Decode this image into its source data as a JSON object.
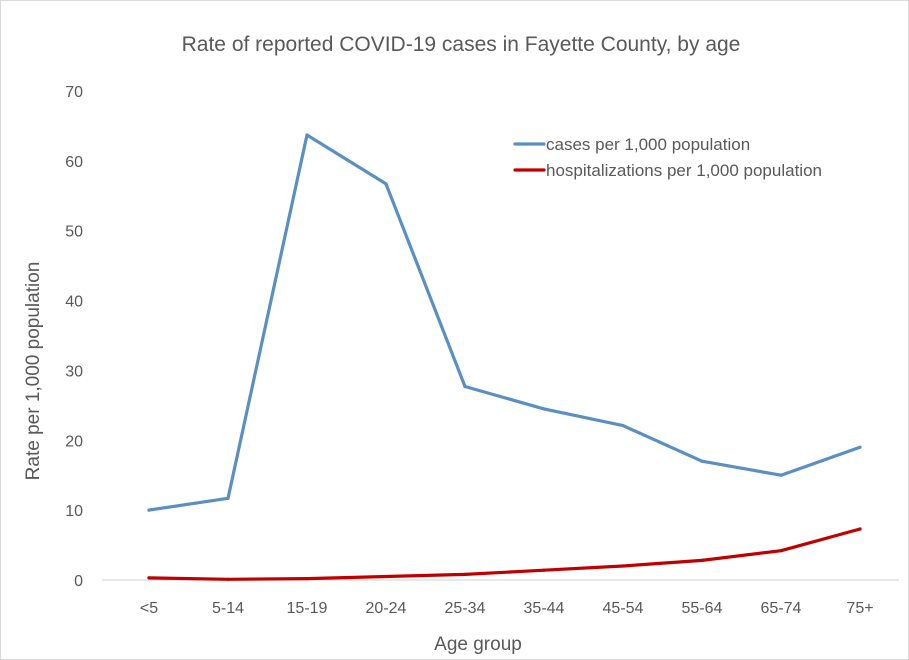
{
  "chart_data": {
    "type": "line",
    "title": "Rate of reported COVID-19 cases in Fayette County, by age",
    "xlabel": "Age group",
    "ylabel": "Rate per 1,000 population",
    "categories": [
      "<5",
      "5-14",
      "15-19",
      "20-24",
      "25-34",
      "35-44",
      "45-54",
      "55-64",
      "65-74",
      "75+"
    ],
    "ylim": [
      0,
      70
    ],
    "yticks": [
      "0",
      "10",
      "20",
      "30",
      "40",
      "50",
      "60",
      "70"
    ],
    "grid": false,
    "legend_position": "top-right",
    "series": [
      {
        "name": "cases per 1,000 population",
        "color": "#5b8fc0",
        "values": [
          10.0,
          11.7,
          63.7,
          56.7,
          27.7,
          24.5,
          22.1,
          17.0,
          15.0,
          19.0
        ]
      },
      {
        "name": "hospitalizations per 1,000 population",
        "color": "#c00000",
        "values": [
          0.3,
          0.1,
          0.2,
          0.5,
          0.8,
          1.4,
          2.0,
          2.8,
          4.2,
          7.3
        ]
      }
    ]
  }
}
